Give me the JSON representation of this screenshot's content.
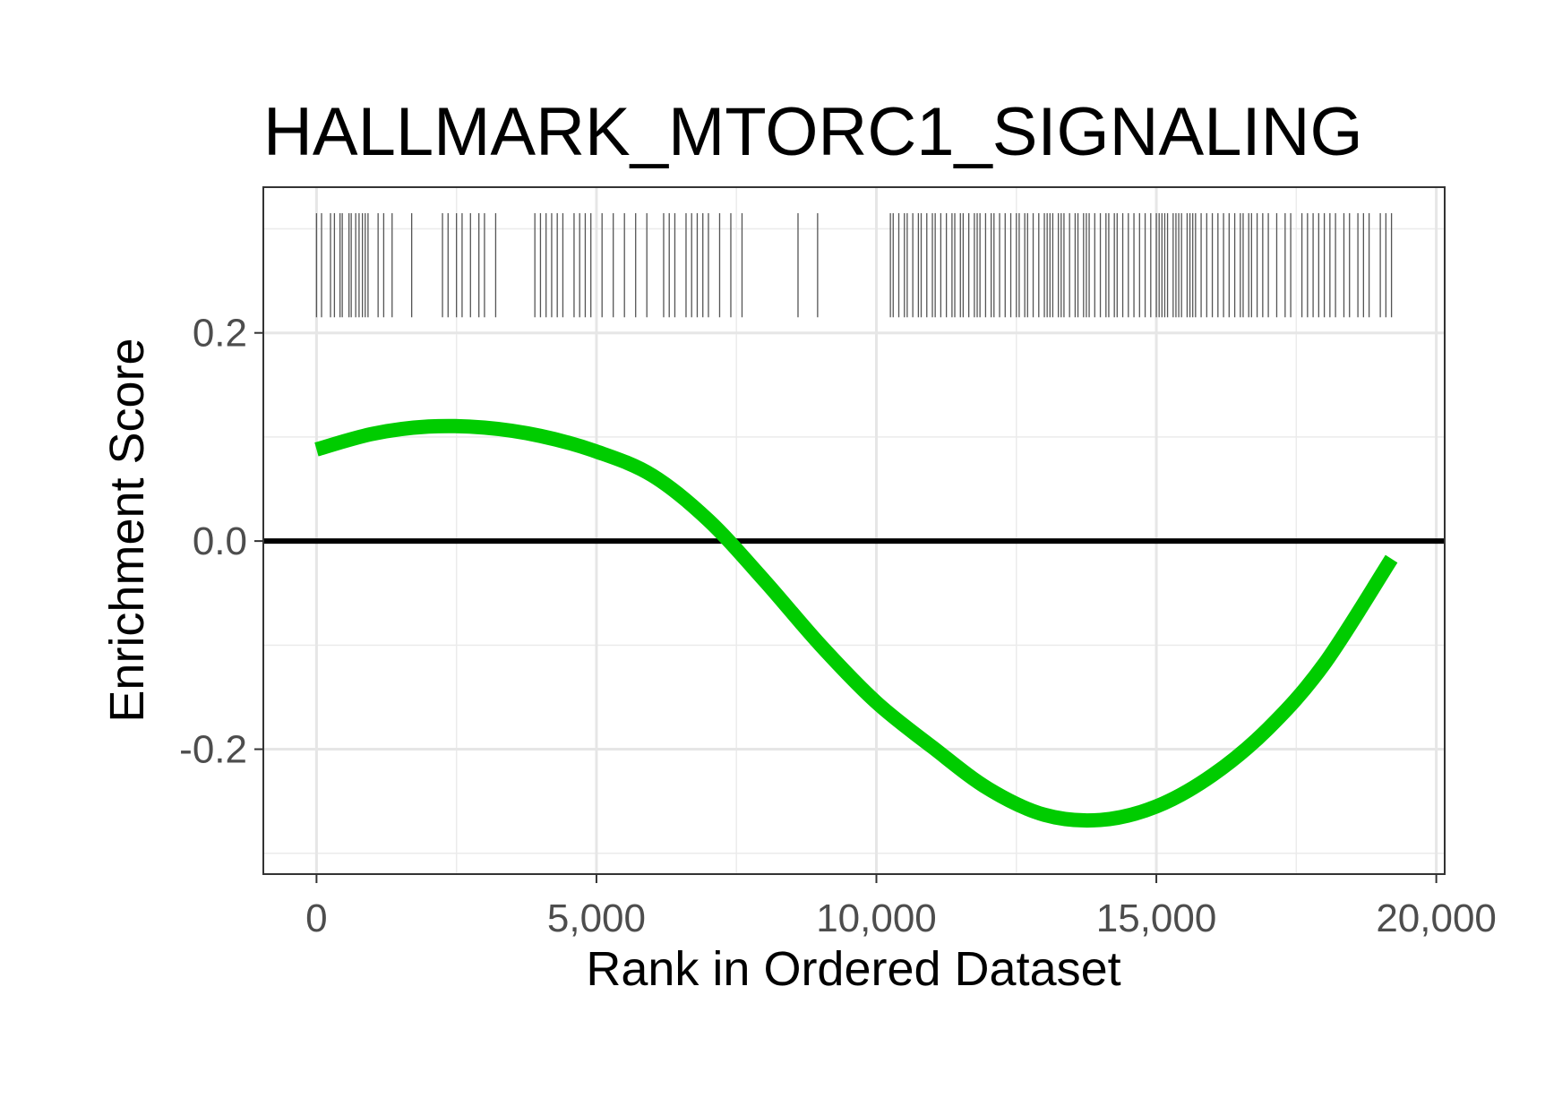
{
  "chart_data": {
    "type": "line",
    "title": "HALLMARK_MTORC1_SIGNALING",
    "xlabel": "Rank in Ordered Dataset",
    "ylabel": "Enrichment Score",
    "xlim": [
      -950,
      20150
    ],
    "ylim": [
      -0.32,
      0.34
    ],
    "x_ticks": [
      {
        "value": 0,
        "label": "0"
      },
      {
        "value": 5000,
        "label": "5,000"
      },
      {
        "value": 10000,
        "label": "10,000"
      },
      {
        "value": 15000,
        "label": "15,000"
      },
      {
        "value": 20000,
        "label": "20,000"
      }
    ],
    "y_ticks": [
      {
        "value": -0.2,
        "label": "-0.2"
      },
      {
        "value": 0.0,
        "label": "0.0"
      },
      {
        "value": 0.2,
        "label": "0.2"
      }
    ],
    "x_minor_gridlines": [
      2500,
      7500,
      12500,
      17500
    ],
    "y_minor_gridlines": [
      -0.3,
      -0.1,
      0.1,
      0.3
    ],
    "grid": true,
    "reference_line_y": 0,
    "series": [
      {
        "color": "#00cc00",
        "x": [
          0,
          1000,
          2000,
          3000,
          4000,
          5000,
          6000,
          7000,
          8000,
          9000,
          10000,
          11000,
          12000,
          13000,
          14000,
          15000,
          16000,
          17000,
          18000,
          19200
        ],
        "y": [
          0.088,
          0.103,
          0.11,
          0.109,
          0.101,
          0.086,
          0.063,
          0.02,
          -0.038,
          -0.1,
          -0.155,
          -0.198,
          -0.238,
          -0.263,
          -0.268,
          -0.255,
          -0.225,
          -0.18,
          -0.118,
          -0.017
        ]
      }
    ],
    "gene_hits": {
      "color": "#555555",
      "y_range": [
        0.215,
        0.315
      ],
      "x": [
        0,
        90,
        250,
        320,
        420,
        460,
        580,
        620,
        700,
        760,
        820,
        870,
        920,
        1100,
        1200,
        1350,
        1700,
        2250,
        2350,
        2500,
        2600,
        2750,
        2900,
        3000,
        3200,
        3900,
        4000,
        4100,
        4200,
        4300,
        4400,
        4600,
        4700,
        4800,
        4900,
        5100,
        5300,
        5500,
        5700,
        5900,
        6200,
        6300,
        6400,
        6600,
        6700,
        6800,
        6900,
        7000,
        7200,
        7400,
        7600,
        8600,
        8950,
        10250,
        10300,
        10400,
        10500,
        10550,
        10650,
        10750,
        10800,
        10900,
        11000,
        11050,
        11150,
        11250,
        11350,
        11400,
        11500,
        11550,
        11650,
        11750,
        11800,
        11850,
        11950,
        12050,
        12100,
        12200,
        12300,
        12400,
        12500,
        12550,
        12650,
        12700,
        12800,
        12900,
        13000,
        13050,
        13100,
        13150,
        13250,
        13300,
        13350,
        13450,
        13550,
        13600,
        13700,
        13750,
        13800,
        13900,
        14000,
        14100,
        14150,
        14250,
        14300,
        14400,
        14500,
        14600,
        14700,
        14800,
        14900,
        15000,
        15050,
        15100,
        15150,
        15200,
        15300,
        15350,
        15400,
        15450,
        15550,
        15600,
        15650,
        15700,
        15800,
        15900,
        16000,
        16100,
        16200,
        16300,
        16400,
        16500,
        16550,
        16650,
        16700,
        16800,
        16900,
        17000,
        17150,
        17300,
        17400,
        17600,
        17700,
        17800,
        17900,
        18000,
        18100,
        18200,
        18350,
        18450,
        18600,
        18700,
        18800,
        19000,
        19100,
        19200
      ]
    }
  }
}
